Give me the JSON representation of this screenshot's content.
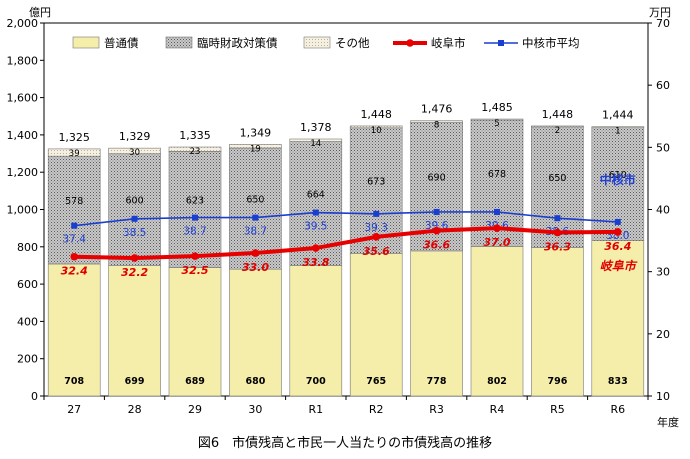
{
  "chart_data": {
    "type": "bar",
    "subtype": "stacked-bar-with-lines",
    "title": "図6　市債残高と市民一人当たりの市債残高の推移",
    "left_axis": {
      "unit": "億円",
      "ylim": [
        0,
        2000
      ],
      "ticks": [
        "0",
        "200",
        "400",
        "600",
        "800",
        "1,000",
        "1,200",
        "1,400",
        "1,600",
        "1,800",
        "2,000"
      ]
    },
    "right_axis": {
      "unit": "万円",
      "ylim": [
        10,
        70
      ],
      "ticks": [
        "10",
        "20",
        "30",
        "40",
        "50",
        "60",
        "70"
      ]
    },
    "xlabel": "年度",
    "categories": [
      "27",
      "28",
      "29",
      "30",
      "R1",
      "R2",
      "R3",
      "R4",
      "R5",
      "R6"
    ],
    "series": [
      {
        "name": "普通債",
        "kind": "bar",
        "axis": "left",
        "color": "#f5eeaa",
        "values": [
          708,
          699,
          689,
          680,
          700,
          765,
          778,
          802,
          796,
          833
        ],
        "labels": [
          "708",
          "699",
          "689",
          "680",
          "700",
          "765",
          "778",
          "802",
          "796",
          "833"
        ]
      },
      {
        "name": "臨時財政対策債",
        "kind": "bar",
        "axis": "left",
        "color": "#b8b8b8",
        "values": [
          578,
          600,
          623,
          650,
          664,
          673,
          690,
          678,
          650,
          610
        ],
        "labels": [
          "578",
          "600",
          "623",
          "650",
          "664",
          "673",
          "690",
          "678",
          "650",
          "610"
        ]
      },
      {
        "name": "その他",
        "kind": "bar",
        "axis": "left",
        "color": "#f2ead8",
        "values": [
          39,
          30,
          23,
          19,
          14,
          10,
          8,
          5,
          2,
          1
        ],
        "labels": [
          "39",
          "30",
          "23",
          "19",
          "14",
          "10",
          "8",
          "5",
          "2",
          "1"
        ]
      },
      {
        "name": "岐阜市",
        "kind": "line",
        "axis": "right",
        "color": "#e80000",
        "values": [
          32.4,
          32.2,
          32.5,
          33.0,
          33.8,
          35.6,
          36.6,
          37.0,
          36.3,
          36.4
        ],
        "labels": [
          "32.4",
          "32.2",
          "32.5",
          "33.0",
          "33.8",
          "35.6",
          "36.6",
          "37.0",
          "36.3",
          "36.4"
        ],
        "tag": "岐阜市"
      },
      {
        "name": "中核市平均",
        "kind": "line",
        "axis": "right",
        "color": "#1a3fd0",
        "values": [
          37.4,
          38.5,
          38.7,
          38.7,
          39.5,
          39.3,
          39.6,
          39.6,
          38.6,
          38.0
        ],
        "labels": [
          "37.4",
          "38.5",
          "38.7",
          "38.7",
          "39.5",
          "39.3",
          "39.6",
          "39.6",
          "38.6",
          "38.0"
        ],
        "tag": "中核市"
      }
    ],
    "totals": [
      "1,325",
      "1,329",
      "1,335",
      "1,349",
      "1,378",
      "1,448",
      "1,476",
      "1,485",
      "1,448",
      "1,444"
    ],
    "legend": [
      "普通債",
      "臨時財政対策債",
      "その他",
      "岐阜市",
      "中核市平均"
    ],
    "legend_position": "top",
    "grid": false
  }
}
